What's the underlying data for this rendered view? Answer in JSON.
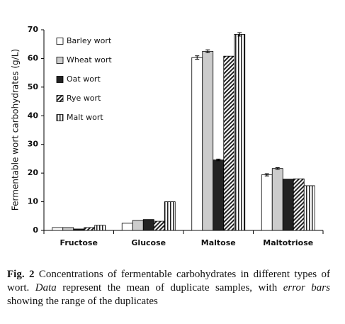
{
  "chart_data": {
    "type": "bar",
    "ylabel": "Fermentable wort carbohydrates (g/L)",
    "categories": [
      "Fructose",
      "Glucose",
      "Maltose",
      "Maltotriose"
    ],
    "series": [
      {
        "name": "Barley wort",
        "color": "#ffffff",
        "pattern": "solid",
        "values": [
          1.0,
          2.5,
          60.3,
          19.4
        ],
        "errors": [
          null,
          null,
          0.6,
          0.4
        ]
      },
      {
        "name": "Wheat wort",
        "color": "#cccccc",
        "pattern": "solid",
        "values": [
          1.0,
          3.5,
          62.5,
          21.6
        ],
        "errors": [
          null,
          null,
          0.5,
          0.3
        ]
      },
      {
        "name": "Oat wort",
        "color": "#222222",
        "pattern": "solid",
        "values": [
          0.5,
          3.8,
          24.6,
          17.9
        ],
        "errors": [
          null,
          null,
          0.3,
          null
        ]
      },
      {
        "name": "Rye wort",
        "color": "#222222",
        "pattern": "diagonal",
        "values": [
          1.0,
          3.2,
          60.8,
          18.0
        ],
        "errors": [
          null,
          null,
          null,
          null
        ]
      },
      {
        "name": "Malt wort",
        "color": "#222222",
        "pattern": "vertical",
        "values": [
          1.8,
          10.0,
          68.4,
          15.6
        ],
        "errors": [
          null,
          null,
          0.6,
          null
        ]
      }
    ],
    "ylim": [
      0,
      70
    ],
    "yticks": [
      0,
      10,
      20,
      30,
      40,
      50,
      60,
      70
    ],
    "grid": false,
    "legend": "top-left"
  },
  "caption": [
    {
      "text": "Fig. 2",
      "style": "bold"
    },
    {
      "text": " Concentrations of fermentable carbohydrates in different types of wort. ",
      "style": "normal"
    },
    {
      "text": "Data",
      "style": "italic"
    },
    {
      "text": " represent the mean of duplicate samples, with ",
      "style": "normal"
    },
    {
      "text": "error bars",
      "style": "italic"
    },
    {
      "text": " showing the range of the duplicates",
      "style": "normal"
    }
  ]
}
